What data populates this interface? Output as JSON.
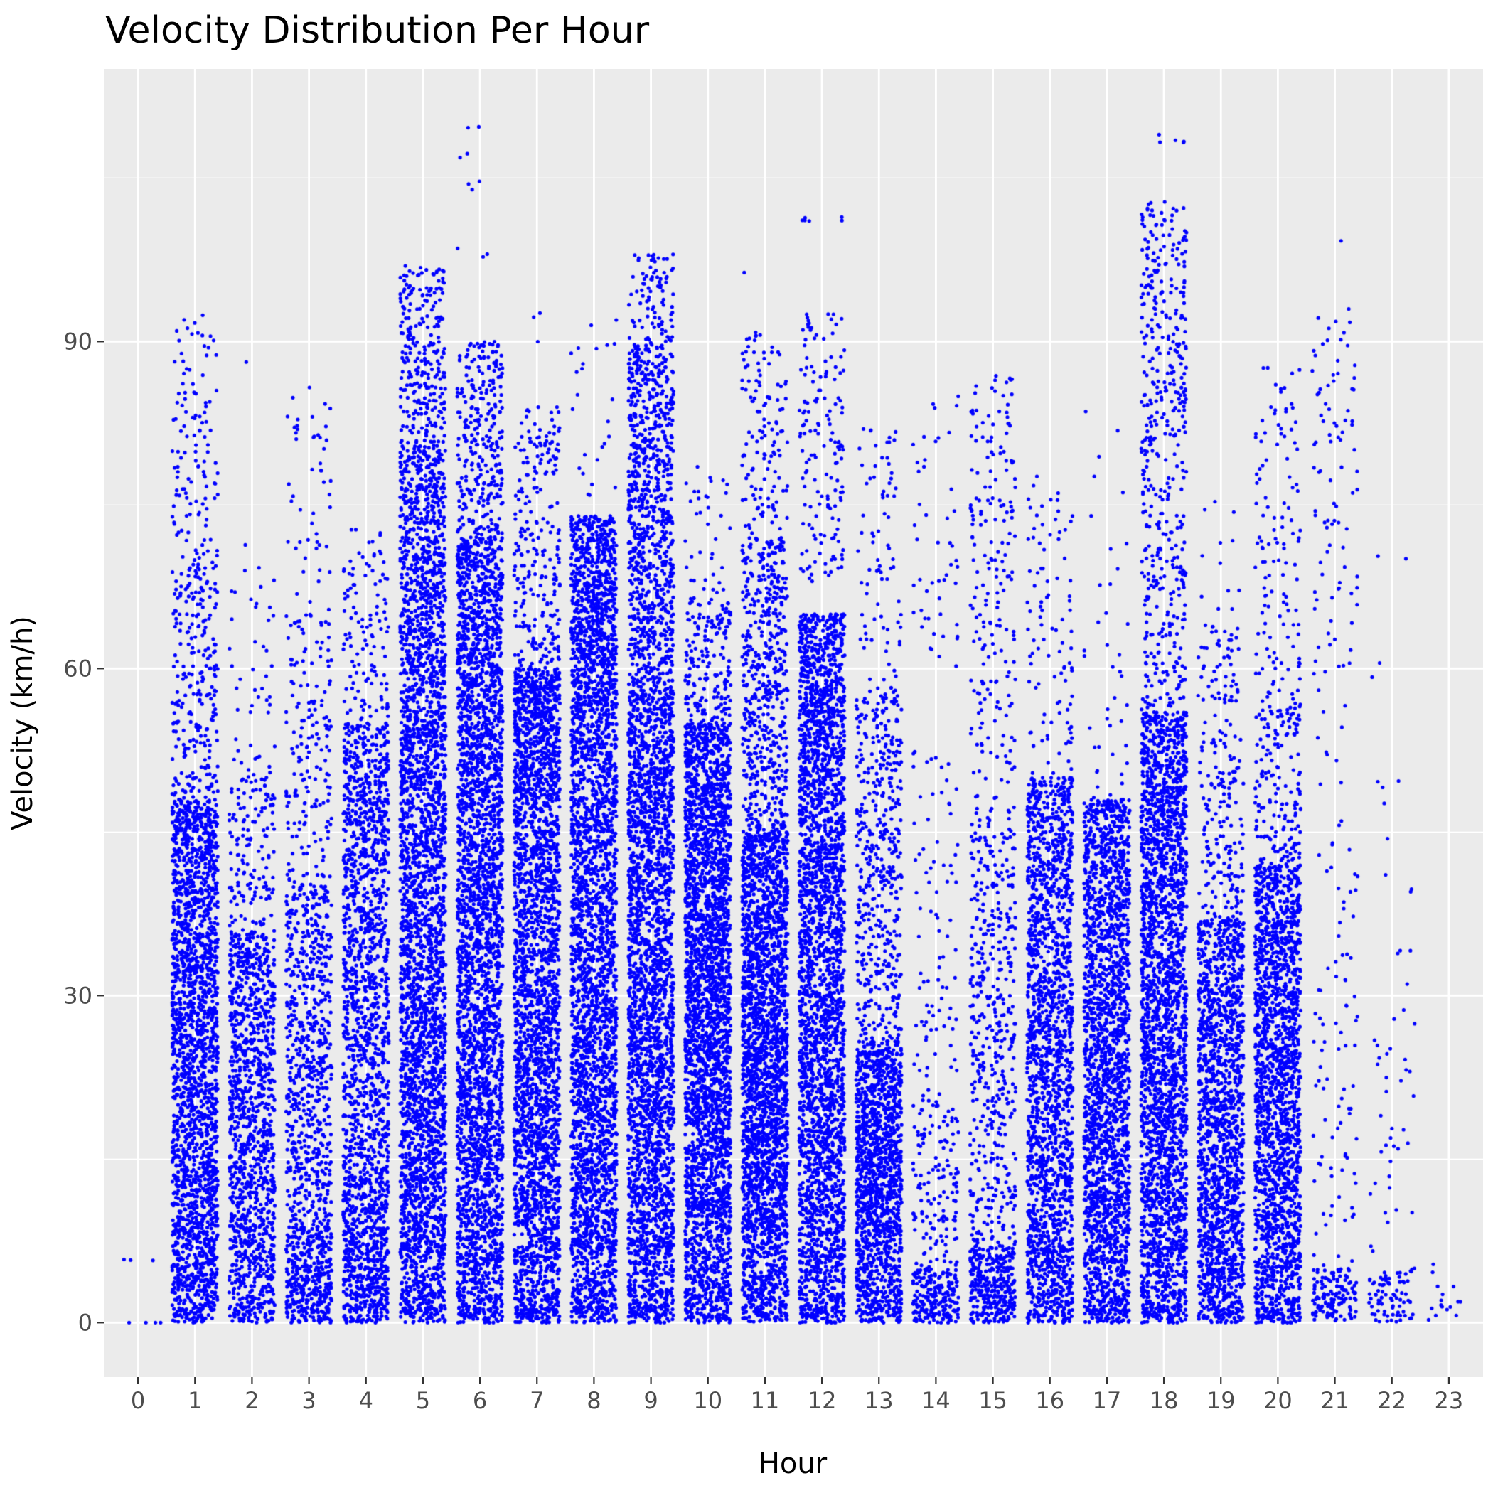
{
  "chart_data": {
    "type": "scatter",
    "title": "Velocity Distribution Per Hour",
    "xlabel": "Hour",
    "ylabel": "Velocity (km/h)",
    "x_ticks": [
      "0",
      "1",
      "2",
      "3",
      "4",
      "5",
      "6",
      "7",
      "8",
      "9",
      "10",
      "11",
      "12",
      "13",
      "14",
      "15",
      "16",
      "17",
      "18",
      "19",
      "20",
      "21",
      "22",
      "23"
    ],
    "y_ticks": [
      0,
      30,
      60,
      90
    ],
    "ylim": [
      -5,
      115
    ],
    "xlim": [
      -0.6,
      23.6
    ],
    "grid": true,
    "jitter_width": 0.4,
    "point_color": "#0000ff",
    "panel_color": "#ebebeb",
    "series": [
      {
        "hour": 0,
        "dense_max": 0,
        "dense_density": 0.0,
        "sparse": [
          {
            "lo": 0,
            "hi": 0,
            "n": 4
          },
          {
            "lo": 5,
            "hi": 6,
            "n": 3
          }
        ]
      },
      {
        "hour": 1,
        "dense_max": 48,
        "dense_density": 1.0,
        "sparse": [
          {
            "lo": 48,
            "hi": 70,
            "n": 260
          },
          {
            "lo": 70,
            "hi": 85,
            "n": 90
          },
          {
            "lo": 85,
            "hi": 92.5,
            "n": 30
          }
        ]
      },
      {
        "hour": 2,
        "dense_max": 36,
        "dense_density": 0.75,
        "sparse": [
          {
            "lo": 36,
            "hi": 50,
            "n": 140
          },
          {
            "lo": 50,
            "hi": 66,
            "n": 40
          },
          {
            "lo": 66,
            "hi": 73,
            "n": 8
          },
          {
            "lo": 88,
            "hi": 88.5,
            "n": 1
          }
        ]
      },
      {
        "hour": 3,
        "dense_max": 8,
        "dense_density": 1.0,
        "sparse": [
          {
            "lo": 8,
            "hi": 40,
            "n": 700
          },
          {
            "lo": 40,
            "hi": 65,
            "n": 180
          },
          {
            "lo": 65,
            "hi": 86,
            "n": 50
          }
        ]
      },
      {
        "hour": 4,
        "dense_max": 12,
        "dense_density": 1.0,
        "sparse": [
          {
            "lo": 12,
            "hi": 55,
            "n": 1300
          },
          {
            "lo": 55,
            "hi": 73,
            "n": 120
          }
        ]
      },
      {
        "hour": 5,
        "dense_max": 55,
        "dense_density": 1.0,
        "sparse": [
          {
            "lo": 55,
            "hi": 80,
            "n": 900
          },
          {
            "lo": 80,
            "hi": 97,
            "n": 280
          }
        ]
      },
      {
        "hour": 6,
        "dense_max": 48,
        "dense_density": 1.0,
        "sparse": [
          {
            "lo": 48,
            "hi": 72,
            "n": 1100
          },
          {
            "lo": 72,
            "hi": 90,
            "n": 300
          },
          {
            "lo": 96,
            "hi": 111,
            "n": 10
          }
        ]
      },
      {
        "hour": 7,
        "dense_max": 50,
        "dense_density": 1.0,
        "sparse": [
          {
            "lo": 50,
            "hi": 60,
            "n": 600
          },
          {
            "lo": 60,
            "hi": 84,
            "n": 250
          },
          {
            "lo": 88,
            "hi": 93,
            "n": 3
          }
        ]
      },
      {
        "hour": 8,
        "dense_max": 58,
        "dense_density": 1.0,
        "sparse": [
          {
            "lo": 58,
            "hi": 74,
            "n": 800
          },
          {
            "lo": 74,
            "hi": 92,
            "n": 25
          }
        ]
      },
      {
        "hour": 9,
        "dense_max": 58,
        "dense_density": 1.0,
        "sparse": [
          {
            "lo": 58,
            "hi": 90,
            "n": 900
          },
          {
            "lo": 90,
            "hi": 98,
            "n": 90
          }
        ]
      },
      {
        "hour": 10,
        "dense_max": 10,
        "dense_density": 1.0,
        "sparse": [
          {
            "lo": 10,
            "hi": 55,
            "n": 2600
          },
          {
            "lo": 55,
            "hi": 66,
            "n": 180
          },
          {
            "lo": 66,
            "hi": 79,
            "n": 40
          }
        ]
      },
      {
        "hour": 11,
        "dense_max": 8,
        "dense_density": 1.0,
        "sparse": [
          {
            "lo": 8,
            "hi": 45,
            "n": 2200
          },
          {
            "lo": 45,
            "hi": 72,
            "n": 550
          },
          {
            "lo": 72,
            "hi": 91,
            "n": 130
          },
          {
            "lo": 96,
            "hi": 97.5,
            "n": 1
          }
        ]
      },
      {
        "hour": 12,
        "dense_max": 50,
        "dense_density": 1.0,
        "sparse": [
          {
            "lo": 50,
            "hi": 65,
            "n": 700
          },
          {
            "lo": 68,
            "hi": 93,
            "n": 160
          },
          {
            "lo": 101,
            "hi": 101.5,
            "n": 6
          }
        ]
      },
      {
        "hour": 13,
        "dense_max": 8,
        "dense_density": 1.0,
        "sparse": [
          {
            "lo": 8,
            "hi": 25,
            "n": 1000
          },
          {
            "lo": 25,
            "hi": 58,
            "n": 500
          },
          {
            "lo": 58,
            "hi": 82,
            "n": 80
          }
        ]
      },
      {
        "hour": 14,
        "dense_max": 5,
        "dense_density": 0.95,
        "sparse": [
          {
            "lo": 5,
            "hi": 20,
            "n": 140
          },
          {
            "lo": 20,
            "hi": 53,
            "n": 90
          },
          {
            "lo": 59,
            "hi": 85,
            "n": 50
          }
        ]
      },
      {
        "hour": 15,
        "dense_max": 7,
        "dense_density": 1.0,
        "sparse": [
          {
            "lo": 7,
            "hi": 45,
            "n": 450
          },
          {
            "lo": 45,
            "hi": 87,
            "n": 220
          }
        ]
      },
      {
        "hour": 16,
        "dense_max": 8,
        "dense_density": 1.0,
        "sparse": [
          {
            "lo": 8,
            "hi": 50,
            "n": 1500
          },
          {
            "lo": 50,
            "hi": 78,
            "n": 100
          }
        ]
      },
      {
        "hour": 17,
        "dense_max": 48,
        "dense_density": 1.0,
        "sparse": [
          {
            "lo": 48,
            "hi": 62,
            "n": 25
          },
          {
            "lo": 62,
            "hi": 84,
            "n": 15
          }
        ]
      },
      {
        "hour": 18,
        "dense_max": 56,
        "dense_density": 1.0,
        "sparse": [
          {
            "lo": 56,
            "hi": 82,
            "n": 250
          },
          {
            "lo": 82,
            "hi": 103,
            "n": 230
          },
          {
            "lo": 108,
            "hi": 109,
            "n": 5
          }
        ]
      },
      {
        "hour": 19,
        "dense_max": 20,
        "dense_density": 1.0,
        "sparse": [
          {
            "lo": 20,
            "hi": 37,
            "n": 700
          },
          {
            "lo": 37,
            "hi": 64,
            "n": 220
          },
          {
            "lo": 64,
            "hi": 78,
            "n": 12
          }
        ]
      },
      {
        "hour": 20,
        "dense_max": 42,
        "dense_density": 1.0,
        "sparse": [
          {
            "lo": 42,
            "hi": 58,
            "n": 180
          },
          {
            "lo": 58,
            "hi": 88,
            "n": 120
          }
        ]
      },
      {
        "hour": 21,
        "dense_max": 5,
        "dense_density": 0.6,
        "sparse": [
          {
            "lo": 5,
            "hi": 30,
            "n": 60
          },
          {
            "lo": 30,
            "hi": 60,
            "n": 40
          },
          {
            "lo": 60,
            "hi": 93,
            "n": 90
          },
          {
            "lo": 99,
            "hi": 99.5,
            "n": 1
          }
        ]
      },
      {
        "hour": 22,
        "dense_max": 5,
        "dense_density": 0.35,
        "sparse": [
          {
            "lo": 5,
            "hi": 35,
            "n": 40
          },
          {
            "lo": 35,
            "hi": 72,
            "n": 12
          }
        ]
      },
      {
        "hour": 23,
        "dense_max": 6,
        "dense_density": 0.06,
        "sparse": []
      }
    ]
  }
}
